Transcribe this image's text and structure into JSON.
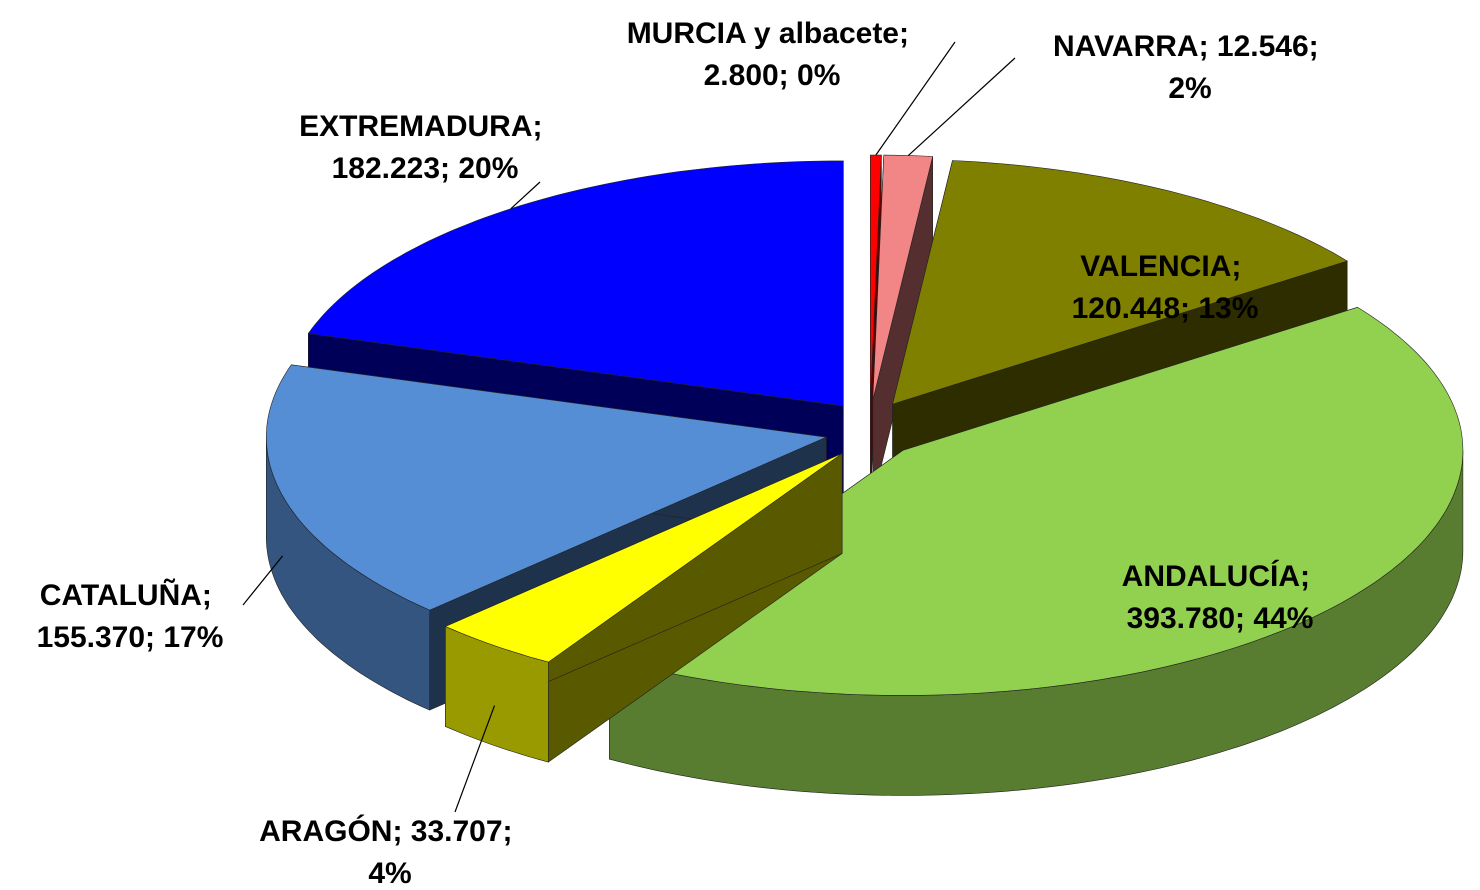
{
  "chart_data": {
    "type": "pie3d",
    "values": [
      2800,
      12546,
      120448,
      393780,
      33707,
      155370,
      182223
    ],
    "value_labels": [
      "MURCIA y albacete; 2.800; 0%",
      "NAVARRA; 12.546; 2%",
      "VALENCIA; 120.448; 13%",
      "ANDALUCÍA; 393.780; 44%",
      "ARAGÓN; 33.707; 4%",
      "CATALUÑA; 155.370; 17%",
      "EXTREMADURA; 182.223; 20%"
    ],
    "colors": [
      "#ff0000",
      "#f28585",
      "#808000",
      "#92d050",
      "#ffff00",
      "#558ed5",
      "#0000ff"
    ]
  }
}
